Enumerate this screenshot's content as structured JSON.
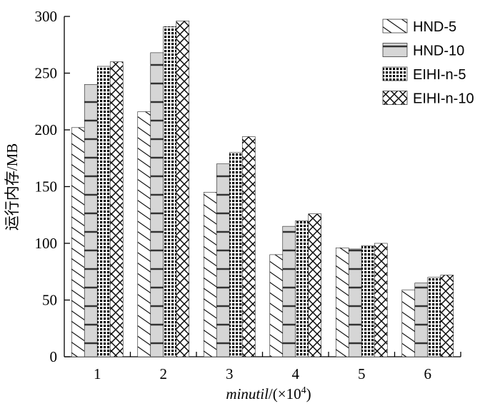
{
  "chart_data": {
    "type": "bar",
    "categories": [
      "1",
      "2",
      "3",
      "4",
      "5",
      "6"
    ],
    "series": [
      {
        "name": "HND-5",
        "values": [
          202,
          216,
          145,
          90,
          96,
          59
        ]
      },
      {
        "name": "HND-10",
        "values": [
          240,
          268,
          170,
          115,
          95,
          65
        ]
      },
      {
        "name": "EIHI-n-5",
        "values": [
          256,
          291,
          180,
          120,
          98,
          70
        ]
      },
      {
        "name": "EIHI-n-10",
        "values": [
          260,
          296,
          194,
          126,
          100,
          72
        ]
      }
    ],
    "ylim": [
      0,
      300
    ],
    "yticks": [
      0,
      50,
      100,
      150,
      200,
      250,
      300
    ],
    "ylabel": "运行内存/MB",
    "xlabel": {
      "italic": "minutil",
      "rest": "/(×10",
      "sup": "4",
      "close": ")"
    },
    "legend_position": "top-right"
  }
}
